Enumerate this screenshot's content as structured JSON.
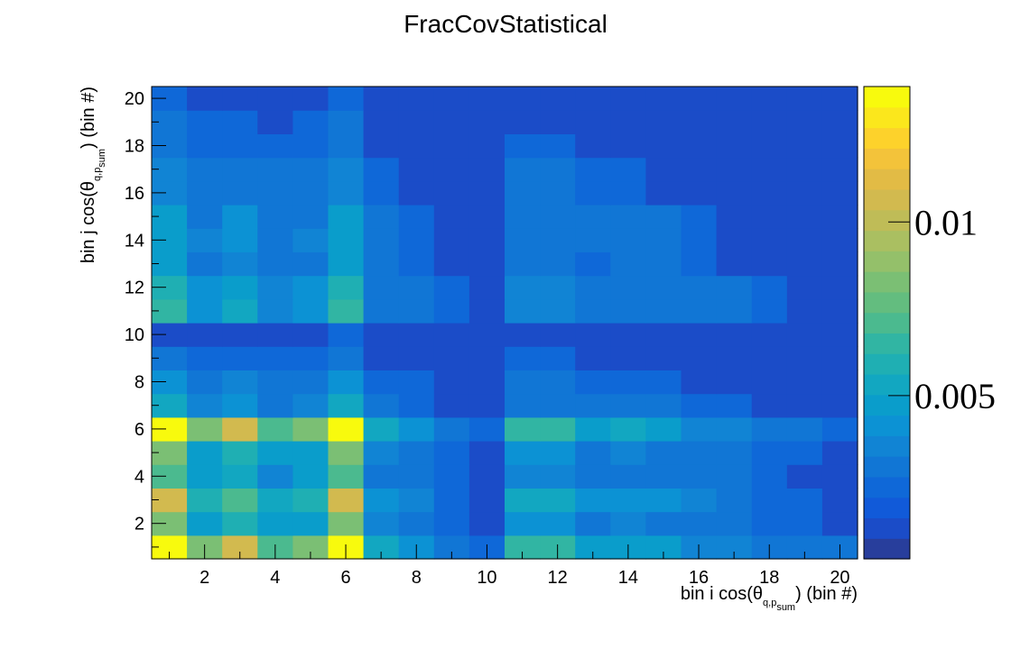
{
  "chart_data": {
    "type": "heatmap",
    "title": "FracCovStatistical",
    "xlabel": {
      "prefix": "bin i cos(θ",
      "sub": "q,p",
      "subsub": "sum",
      "suffix": ") (bin #)"
    },
    "ylabel": {
      "prefix": "bin j cos(θ",
      "sub": "q,p",
      "subsub": "sum",
      "suffix": ") (bin #)"
    },
    "x_range": [
      0.5,
      20.5
    ],
    "y_range": [
      0.5,
      20.5
    ],
    "x_ticks": [
      2,
      4,
      6,
      8,
      10,
      12,
      14,
      16,
      18,
      20
    ],
    "y_ticks": [
      2,
      4,
      6,
      8,
      10,
      12,
      14,
      16,
      18,
      20
    ],
    "z_range": [
      0.0003,
      0.0139
    ],
    "z_ticks": [
      {
        "value": 0.005,
        "label": "0.005"
      },
      {
        "value": 0.01,
        "label": "0.01"
      }
    ],
    "palette": [
      "#283e9c",
      "#1b4cc8",
      "#115ad9",
      "#0f68d8",
      "#1176d5",
      "#1184d4",
      "#0c92d4",
      "#0a9dcb",
      "#12a7c1",
      "#1fafb3",
      "#31b5a3",
      "#4bba8f",
      "#63bd7f",
      "#7bbf74",
      "#94c06a",
      "#aabf61",
      "#bfbc57",
      "#d2ba4f",
      "#e2bb45",
      "#f3c33a",
      "#fdd22b",
      "#fbe71c",
      "#f8fa0d"
    ],
    "values": [
      [
        0.0139,
        0.008,
        0.0108,
        0.0071,
        0.008,
        0.0139,
        0.0055,
        0.0042,
        0.0027,
        0.0021,
        0.0068,
        0.0068,
        0.0046,
        0.0046,
        0.0046,
        0.0036,
        0.0036,
        0.0027,
        0.0027,
        0.0027
      ],
      [
        0.008,
        0.005,
        0.0062,
        0.0046,
        0.005,
        0.008,
        0.0036,
        0.0027,
        0.0021,
        0.001,
        0.0042,
        0.0042,
        0.0031,
        0.0036,
        0.0031,
        0.0027,
        0.0027,
        0.0021,
        0.0021,
        0.001
      ],
      [
        0.0108,
        0.0062,
        0.0071,
        0.0055,
        0.0062,
        0.0108,
        0.0042,
        0.0036,
        0.0021,
        0.001,
        0.0055,
        0.0055,
        0.0042,
        0.0042,
        0.0042,
        0.0036,
        0.0027,
        0.0021,
        0.0021,
        0.001
      ],
      [
        0.0071,
        0.0046,
        0.0055,
        0.0036,
        0.0046,
        0.0071,
        0.0031,
        0.0027,
        0.0021,
        0.001,
        0.0036,
        0.0036,
        0.0031,
        0.0031,
        0.0031,
        0.0027,
        0.0027,
        0.0021,
        0.001,
        0.001
      ],
      [
        0.008,
        0.005,
        0.0062,
        0.0046,
        0.005,
        0.008,
        0.0036,
        0.0027,
        0.0021,
        0.001,
        0.0042,
        0.0042,
        0.0031,
        0.0036,
        0.0031,
        0.0027,
        0.0027,
        0.0021,
        0.0021,
        0.001
      ],
      [
        0.0139,
        0.008,
        0.0108,
        0.0071,
        0.008,
        0.0139,
        0.0055,
        0.0042,
        0.0027,
        0.0021,
        0.0068,
        0.0068,
        0.0046,
        0.0055,
        0.005,
        0.0036,
        0.0036,
        0.0027,
        0.0027,
        0.0021
      ],
      [
        0.0055,
        0.0036,
        0.0042,
        0.0031,
        0.0036,
        0.0055,
        0.0027,
        0.0021,
        0.001,
        0.001,
        0.0031,
        0.0031,
        0.0027,
        0.0027,
        0.0027,
        0.0021,
        0.0021,
        0.001,
        0.001,
        0.001
      ],
      [
        0.0042,
        0.0027,
        0.0036,
        0.0027,
        0.0027,
        0.0042,
        0.0021,
        0.0021,
        0.001,
        0.001,
        0.0027,
        0.0027,
        0.0021,
        0.0021,
        0.0021,
        0.001,
        0.001,
        0.001,
        0.001,
        0.001
      ],
      [
        0.0027,
        0.0021,
        0.0021,
        0.0021,
        0.0021,
        0.0027,
        0.001,
        0.001,
        0.001,
        0.001,
        0.0021,
        0.0021,
        0.001,
        0.001,
        0.001,
        0.001,
        0.001,
        0.001,
        0.001,
        0.001
      ],
      [
        0.001,
        0.001,
        0.001,
        0.001,
        0.001,
        0.0021,
        0.001,
        0.001,
        0.001,
        0.001,
        0.001,
        0.001,
        0.001,
        0.001,
        0.001,
        0.001,
        0.001,
        0.001,
        0.001,
        0.001
      ],
      [
        0.0068,
        0.0042,
        0.0055,
        0.0036,
        0.0042,
        0.0068,
        0.0031,
        0.0027,
        0.0021,
        0.001,
        0.0036,
        0.0036,
        0.0031,
        0.0031,
        0.0031,
        0.0027,
        0.0027,
        0.0021,
        0.001,
        0.001
      ],
      [
        0.0062,
        0.0042,
        0.005,
        0.0036,
        0.0042,
        0.0062,
        0.0031,
        0.0027,
        0.0021,
        0.001,
        0.0036,
        0.0036,
        0.0031,
        0.0031,
        0.0031,
        0.0027,
        0.0027,
        0.0021,
        0.001,
        0.001
      ],
      [
        0.0046,
        0.0031,
        0.0036,
        0.0031,
        0.0031,
        0.0046,
        0.0027,
        0.0021,
        0.001,
        0.001,
        0.0031,
        0.0031,
        0.0021,
        0.0027,
        0.0027,
        0.0021,
        0.001,
        0.001,
        0.001,
        0.001
      ],
      [
        0.0046,
        0.0036,
        0.0042,
        0.0031,
        0.0036,
        0.005,
        0.0027,
        0.0021,
        0.001,
        0.001,
        0.0031,
        0.0031,
        0.0027,
        0.0027,
        0.0027,
        0.0021,
        0.001,
        0.001,
        0.001,
        0.001
      ],
      [
        0.0046,
        0.0031,
        0.0042,
        0.0031,
        0.0031,
        0.005,
        0.0027,
        0.0021,
        0.001,
        0.001,
        0.0031,
        0.0031,
        0.0027,
        0.0027,
        0.0027,
        0.0021,
        0.001,
        0.001,
        0.001,
        0.001
      ],
      [
        0.0036,
        0.0027,
        0.0031,
        0.0027,
        0.0027,
        0.0036,
        0.0021,
        0.001,
        0.001,
        0.001,
        0.0027,
        0.0027,
        0.0021,
        0.0021,
        0.001,
        0.001,
        0.001,
        0.001,
        0.001,
        0.001
      ],
      [
        0.0036,
        0.0027,
        0.0027,
        0.0027,
        0.0027,
        0.0036,
        0.0021,
        0.001,
        0.001,
        0.001,
        0.0027,
        0.0027,
        0.0021,
        0.0021,
        0.001,
        0.001,
        0.001,
        0.001,
        0.001,
        0.001
      ],
      [
        0.0027,
        0.0021,
        0.0021,
        0.0021,
        0.0021,
        0.0027,
        0.001,
        0.001,
        0.001,
        0.001,
        0.0021,
        0.0021,
        0.001,
        0.001,
        0.001,
        0.001,
        0.001,
        0.001,
        0.001,
        0.001
      ],
      [
        0.0027,
        0.0021,
        0.0021,
        0.001,
        0.0021,
        0.0027,
        0.001,
        0.001,
        0.001,
        0.001,
        0.001,
        0.001,
        0.001,
        0.001,
        0.001,
        0.001,
        0.001,
        0.001,
        0.001,
        0.001
      ],
      [
        0.0021,
        0.001,
        0.001,
        0.001,
        0.001,
        0.0021,
        0.001,
        0.001,
        0.001,
        0.001,
        0.001,
        0.001,
        0.001,
        0.001,
        0.001,
        0.001,
        0.001,
        0.001,
        0.001,
        0.001
      ]
    ]
  }
}
